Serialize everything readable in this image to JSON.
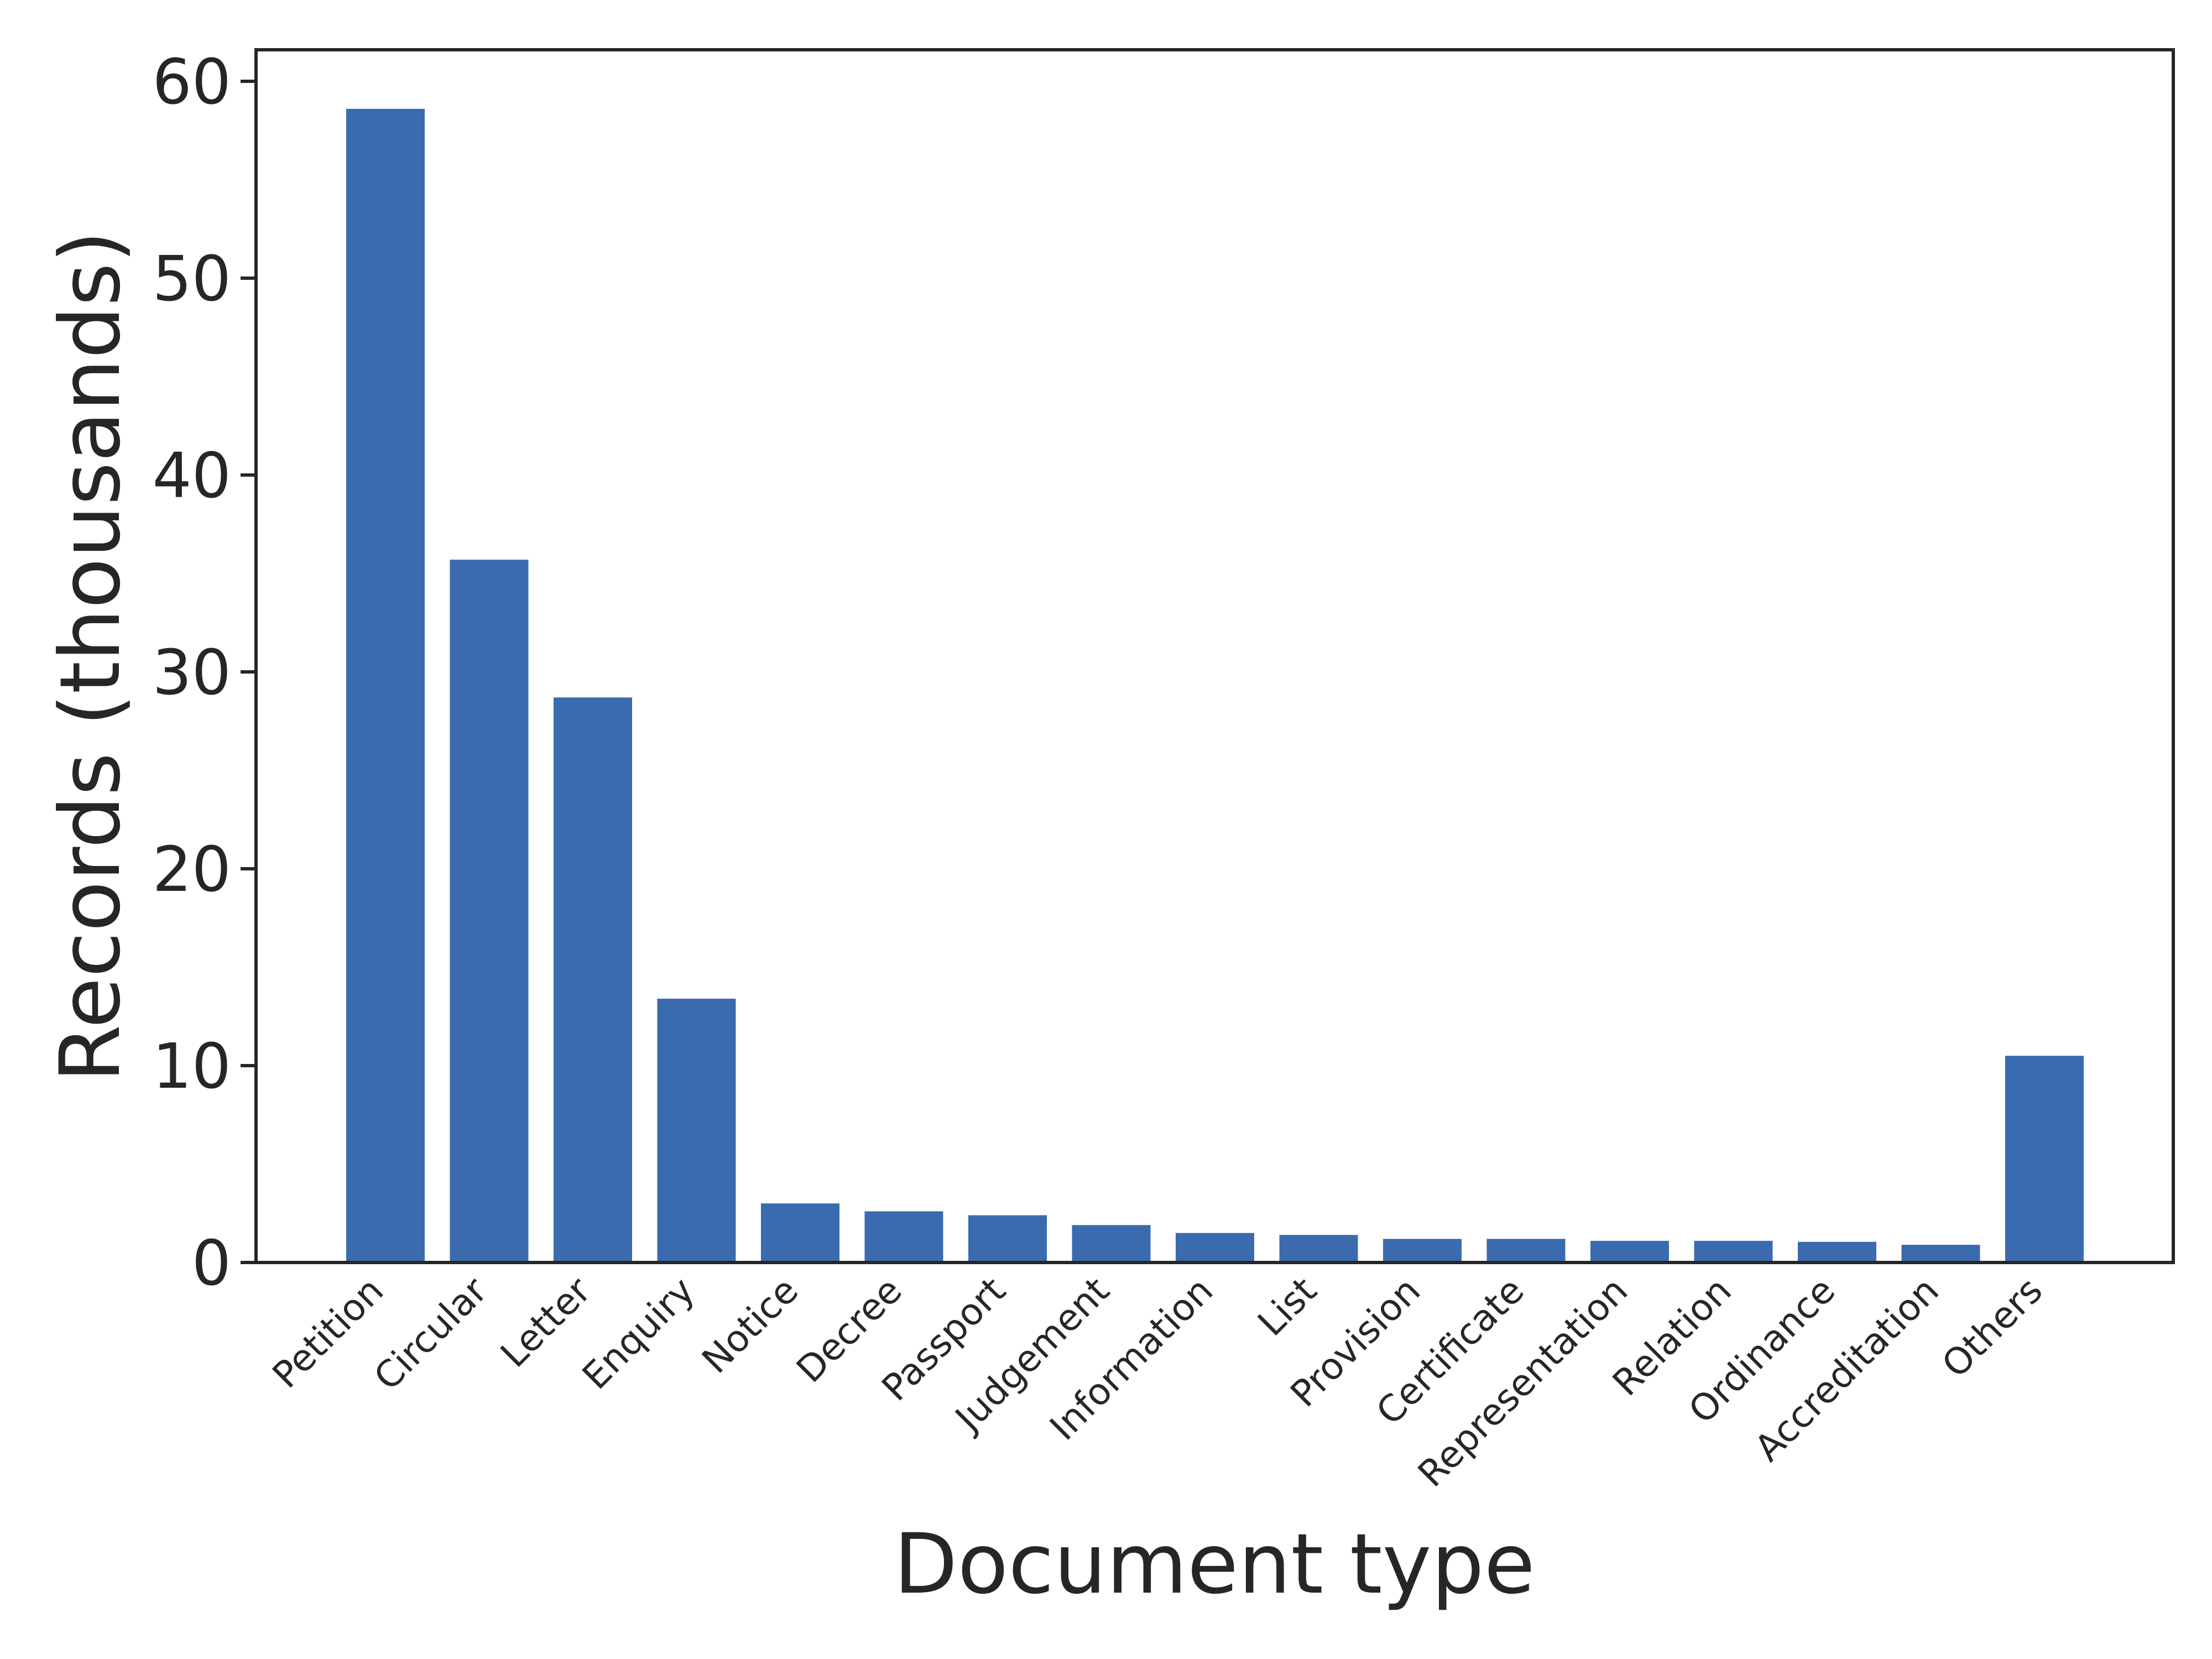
{
  "chart_data": {
    "type": "bar",
    "title": "",
    "xlabel": "Document type",
    "ylabel": "Records (thousands)",
    "categories": [
      "Petition",
      "Circular",
      "Letter",
      "Enquiry",
      "Notice",
      "Decree",
      "Passport",
      "Judgement",
      "Information",
      "List",
      "Provision",
      "Certificate",
      "Representation",
      "Relation",
      "Ordinance",
      "Accreditation",
      "Others"
    ],
    "values": [
      58.6,
      35.7,
      28.7,
      13.4,
      3.0,
      2.6,
      2.4,
      1.9,
      1.5,
      1.4,
      1.2,
      1.2,
      1.1,
      1.1,
      1.05,
      0.9,
      10.5
    ],
    "ylim": [
      0,
      61.6
    ],
    "yticks": [
      0,
      10,
      20,
      30,
      40,
      50,
      60
    ],
    "grid": false,
    "bar_color": "#3A6BAF"
  }
}
